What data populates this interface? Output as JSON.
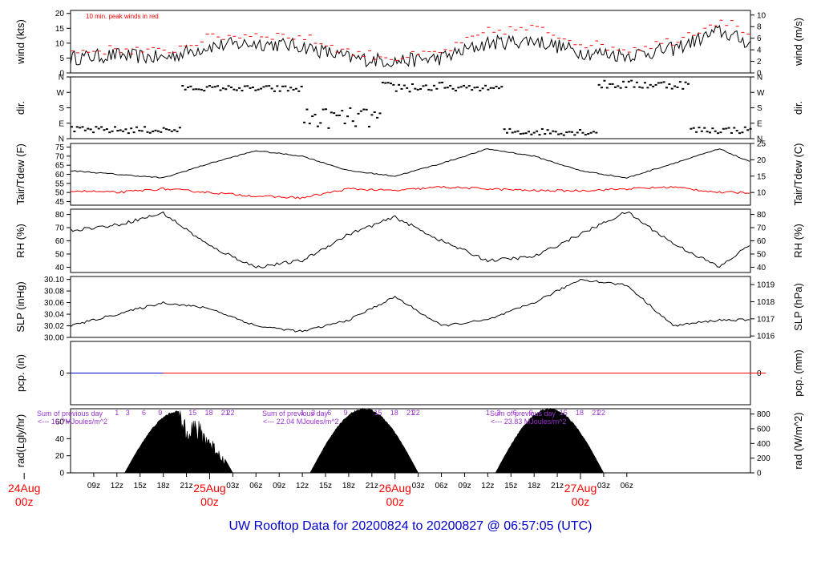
{
  "footer": {
    "prefix": "UW Rooftop Data for",
    "start": "20200824",
    "to": "to",
    "end": "20200827",
    "at": "@",
    "time": "06:57:05",
    "tz": "(UTC)"
  },
  "colors": {
    "black": "#000000",
    "red": "#ff0000",
    "blue": "#0000cc",
    "purple": "#9933cc"
  },
  "chart_data": [
    {
      "type": "line",
      "panel": "wind",
      "ylabel_left": "wind (kts)",
      "ylabel_right": "wind (m/s)",
      "yticks_left": [
        "0",
        "5",
        "10",
        "15",
        "20"
      ],
      "ylim_left": [
        0,
        21
      ],
      "yticks_right": [
        "0",
        "2",
        "4",
        "6",
        "8",
        "10"
      ],
      "annotation": "10 min. peak winds in red",
      "series": [
        {
          "color": "#000000",
          "x_hours": [
            0,
            6,
            12,
            18,
            24,
            30,
            36,
            42,
            48,
            54,
            60,
            66,
            72,
            78,
            84,
            90
          ],
          "values": [
            5,
            6,
            5,
            9,
            10,
            9,
            5,
            4,
            5,
            10,
            11,
            7,
            6,
            8,
            14,
            8
          ]
        },
        {
          "color": "#ff0000",
          "x_hours": [
            0,
            6,
            12,
            18,
            24,
            30,
            36,
            42,
            48,
            54,
            60,
            66,
            72,
            78,
            84,
            90
          ],
          "values": [
            7,
            8,
            7,
            12,
            13,
            12,
            7,
            5,
            7,
            14,
            15,
            10,
            8,
            11,
            18,
            11
          ]
        }
      ]
    },
    {
      "type": "scatter",
      "panel": "dir",
      "ylabel_left": "dir.",
      "ylabel_right": "dir.",
      "yticks_left": [
        "N",
        "E",
        "S",
        "W",
        "N"
      ],
      "yticks_right": [
        "N",
        "E",
        "S",
        "W",
        "N"
      ]
    },
    {
      "type": "line",
      "panel": "temperature",
      "ylabel_left": "Tair/Tdew (F)",
      "ylabel_right": "Tair/Tdew (C)",
      "yticks_left": [
        "45",
        "50",
        "55",
        "60",
        "65",
        "70",
        "75"
      ],
      "ylim_left": [
        43,
        77
      ],
      "yticks_right": [
        "10",
        "15",
        "20",
        "25"
      ],
      "series": [
        {
          "name": "Tair",
          "color": "#000000",
          "x_hours": [
            0,
            6,
            12,
            18,
            24,
            30,
            36,
            42,
            48,
            54,
            60,
            66,
            72,
            78,
            84,
            90
          ],
          "values": [
            62,
            60,
            58,
            66,
            73,
            70,
            62,
            59,
            66,
            74,
            70,
            62,
            58,
            66,
            74,
            63
          ]
        },
        {
          "name": "Tdew",
          "color": "#ff0000",
          "x_hours": [
            0,
            6,
            12,
            18,
            24,
            30,
            36,
            42,
            48,
            54,
            60,
            66,
            72,
            78,
            84,
            90
          ],
          "values": [
            51,
            50,
            52,
            50,
            48,
            47,
            52,
            51,
            53,
            52,
            51,
            51,
            52,
            53,
            50,
            50
          ]
        }
      ]
    },
    {
      "type": "line",
      "panel": "rh",
      "ylabel_left": "RH (%)",
      "ylabel_right": "RH (%)",
      "yticks_left": [
        "40",
        "50",
        "60",
        "70",
        "80"
      ],
      "ylim_left": [
        36,
        84
      ],
      "yticks_right": [
        "40",
        "50",
        "60",
        "70",
        "80"
      ],
      "series": [
        {
          "color": "#000000",
          "x_hours": [
            0,
            6,
            12,
            18,
            24,
            30,
            36,
            42,
            48,
            54,
            60,
            66,
            72,
            78,
            84,
            90
          ],
          "values": [
            68,
            72,
            81,
            56,
            40,
            45,
            65,
            78,
            60,
            45,
            48,
            65,
            82,
            58,
            40,
            66
          ]
        }
      ]
    },
    {
      "type": "line",
      "panel": "slp",
      "ylabel_left": "SLP (inHg)",
      "ylabel_right": "SLP (hPa)",
      "yticks_left": [
        "30.00",
        "30.02",
        "30.04",
        "30.06",
        "30.08",
        "30.10"
      ],
      "ylim_left": [
        30.0,
        30.105
      ],
      "yticks_right": [
        "1016",
        "1017",
        "1018",
        "1019"
      ],
      "series": [
        {
          "color": "#000000",
          "x_hours": [
            0,
            6,
            12,
            18,
            24,
            30,
            36,
            42,
            48,
            54,
            60,
            66,
            72,
            78,
            84,
            90
          ],
          "values": [
            30.02,
            30.04,
            30.06,
            30.05,
            30.02,
            30.01,
            30.03,
            30.07,
            30.02,
            30.03,
            30.06,
            30.1,
            30.09,
            30.02,
            30.03,
            30.03
          ]
        }
      ]
    },
    {
      "type": "line",
      "panel": "pcp",
      "ylabel_left": "pcp. (in)",
      "ylabel_right": "pcp. (mm)",
      "yticks_left": [
        "0"
      ],
      "yticks_right": [
        "0"
      ],
      "series": [
        {
          "color": "#0000cc",
          "x_hours": [
            0,
            12
          ],
          "values": [
            0,
            0
          ]
        },
        {
          "color": "#ff0000",
          "x_hours": [
            12,
            90
          ],
          "values": [
            0,
            0
          ]
        }
      ]
    },
    {
      "type": "area",
      "panel": "rad",
      "ylabel_left": "rad(Lgly/hr)",
      "ylabel_right": "rad (W/m^2)",
      "yticks_left": [
        "0",
        "20",
        "40",
        "60"
      ],
      "ylim_left": [
        0,
        75
      ],
      "yticks_right": [
        "0",
        "200",
        "400",
        "600",
        "800"
      ],
      "hour_labels": [
        "1",
        "3",
        "6",
        "9",
        "15",
        "18",
        "21",
        "22"
      ],
      "annotations": [
        {
          "line1": "Sum of previous day",
          "line2": "<--- 16.?MJoules/m^2"
        },
        {
          "line1": "Sum of previous day",
          "line2": "<--- 22.04 MJoules/m^2"
        },
        {
          "line1": "Sum of previous day",
          "line2": "<--- 23.83 MJoules/m^2"
        }
      ],
      "days": [
        {
          "peak": 73,
          "cloudy": true
        },
        {
          "peak": 76,
          "cloudy": false
        },
        {
          "peak": 76,
          "cloudy": false
        }
      ]
    }
  ],
  "x_axis": {
    "tick_labels": [
      "09z",
      "12z",
      "15z",
      "18z",
      "21z",
      "03z",
      "06z",
      "09z",
      "12z",
      "15z",
      "18z",
      "21z",
      "03z",
      "06z",
      "09z",
      "12z",
      "15z",
      "18z",
      "21z",
      "03z",
      "06z"
    ],
    "day_labels": [
      {
        "date": "24Aug",
        "hour": "00z"
      },
      {
        "date": "25Aug",
        "hour": "00z"
      },
      {
        "date": "26Aug",
        "hour": "00z"
      },
      {
        "date": "27Aug",
        "hour": "00z"
      }
    ]
  }
}
